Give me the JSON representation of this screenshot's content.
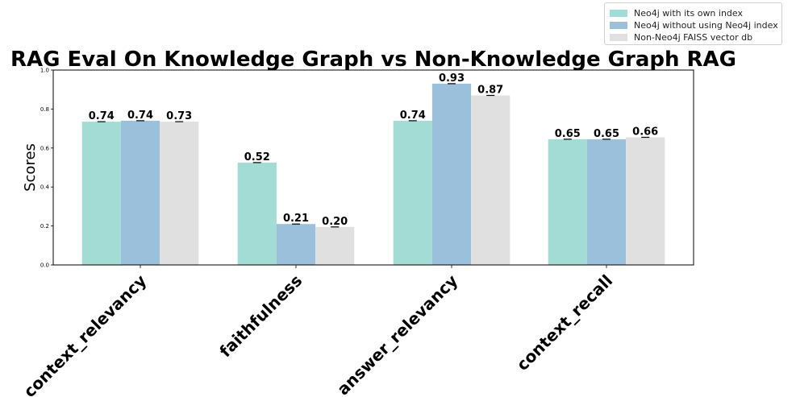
{
  "chart_data": {
    "type": "bar",
    "title": "RAG Eval On Knowledge Graph vs Non-Knowledge Graph RAG",
    "ylabel": "Scores",
    "xlabel": "",
    "ylim": [
      0,
      1.0
    ],
    "yticks": [
      "0.0",
      "0.2",
      "0.4",
      "0.6",
      "0.8",
      "1.0"
    ],
    "categories": [
      "context_relevancy",
      "faithfulness",
      "answer_relevancy",
      "context_recall"
    ],
    "series": [
      {
        "name": "Neo4j with its own index",
        "color": "#a3dcd5",
        "values": [
          0.735,
          0.525,
          0.74,
          0.645
        ],
        "labels": [
          "0.74",
          "0.52",
          "0.74",
          "0.65"
        ]
      },
      {
        "name": "Neo4j without using Neo4j index",
        "color": "#9bc0db",
        "values": [
          0.74,
          0.21,
          0.93,
          0.645
        ],
        "labels": [
          "0.74",
          "0.21",
          "0.93",
          "0.65"
        ]
      },
      {
        "name": "Non-Neo4j FAISS vector db",
        "color": "#e0e0e0",
        "values": [
          0.735,
          0.195,
          0.87,
          0.655
        ],
        "labels": [
          "0.73",
          "0.20",
          "0.87",
          "0.66"
        ]
      }
    ],
    "legend_position": "top-right",
    "grid": false
  }
}
